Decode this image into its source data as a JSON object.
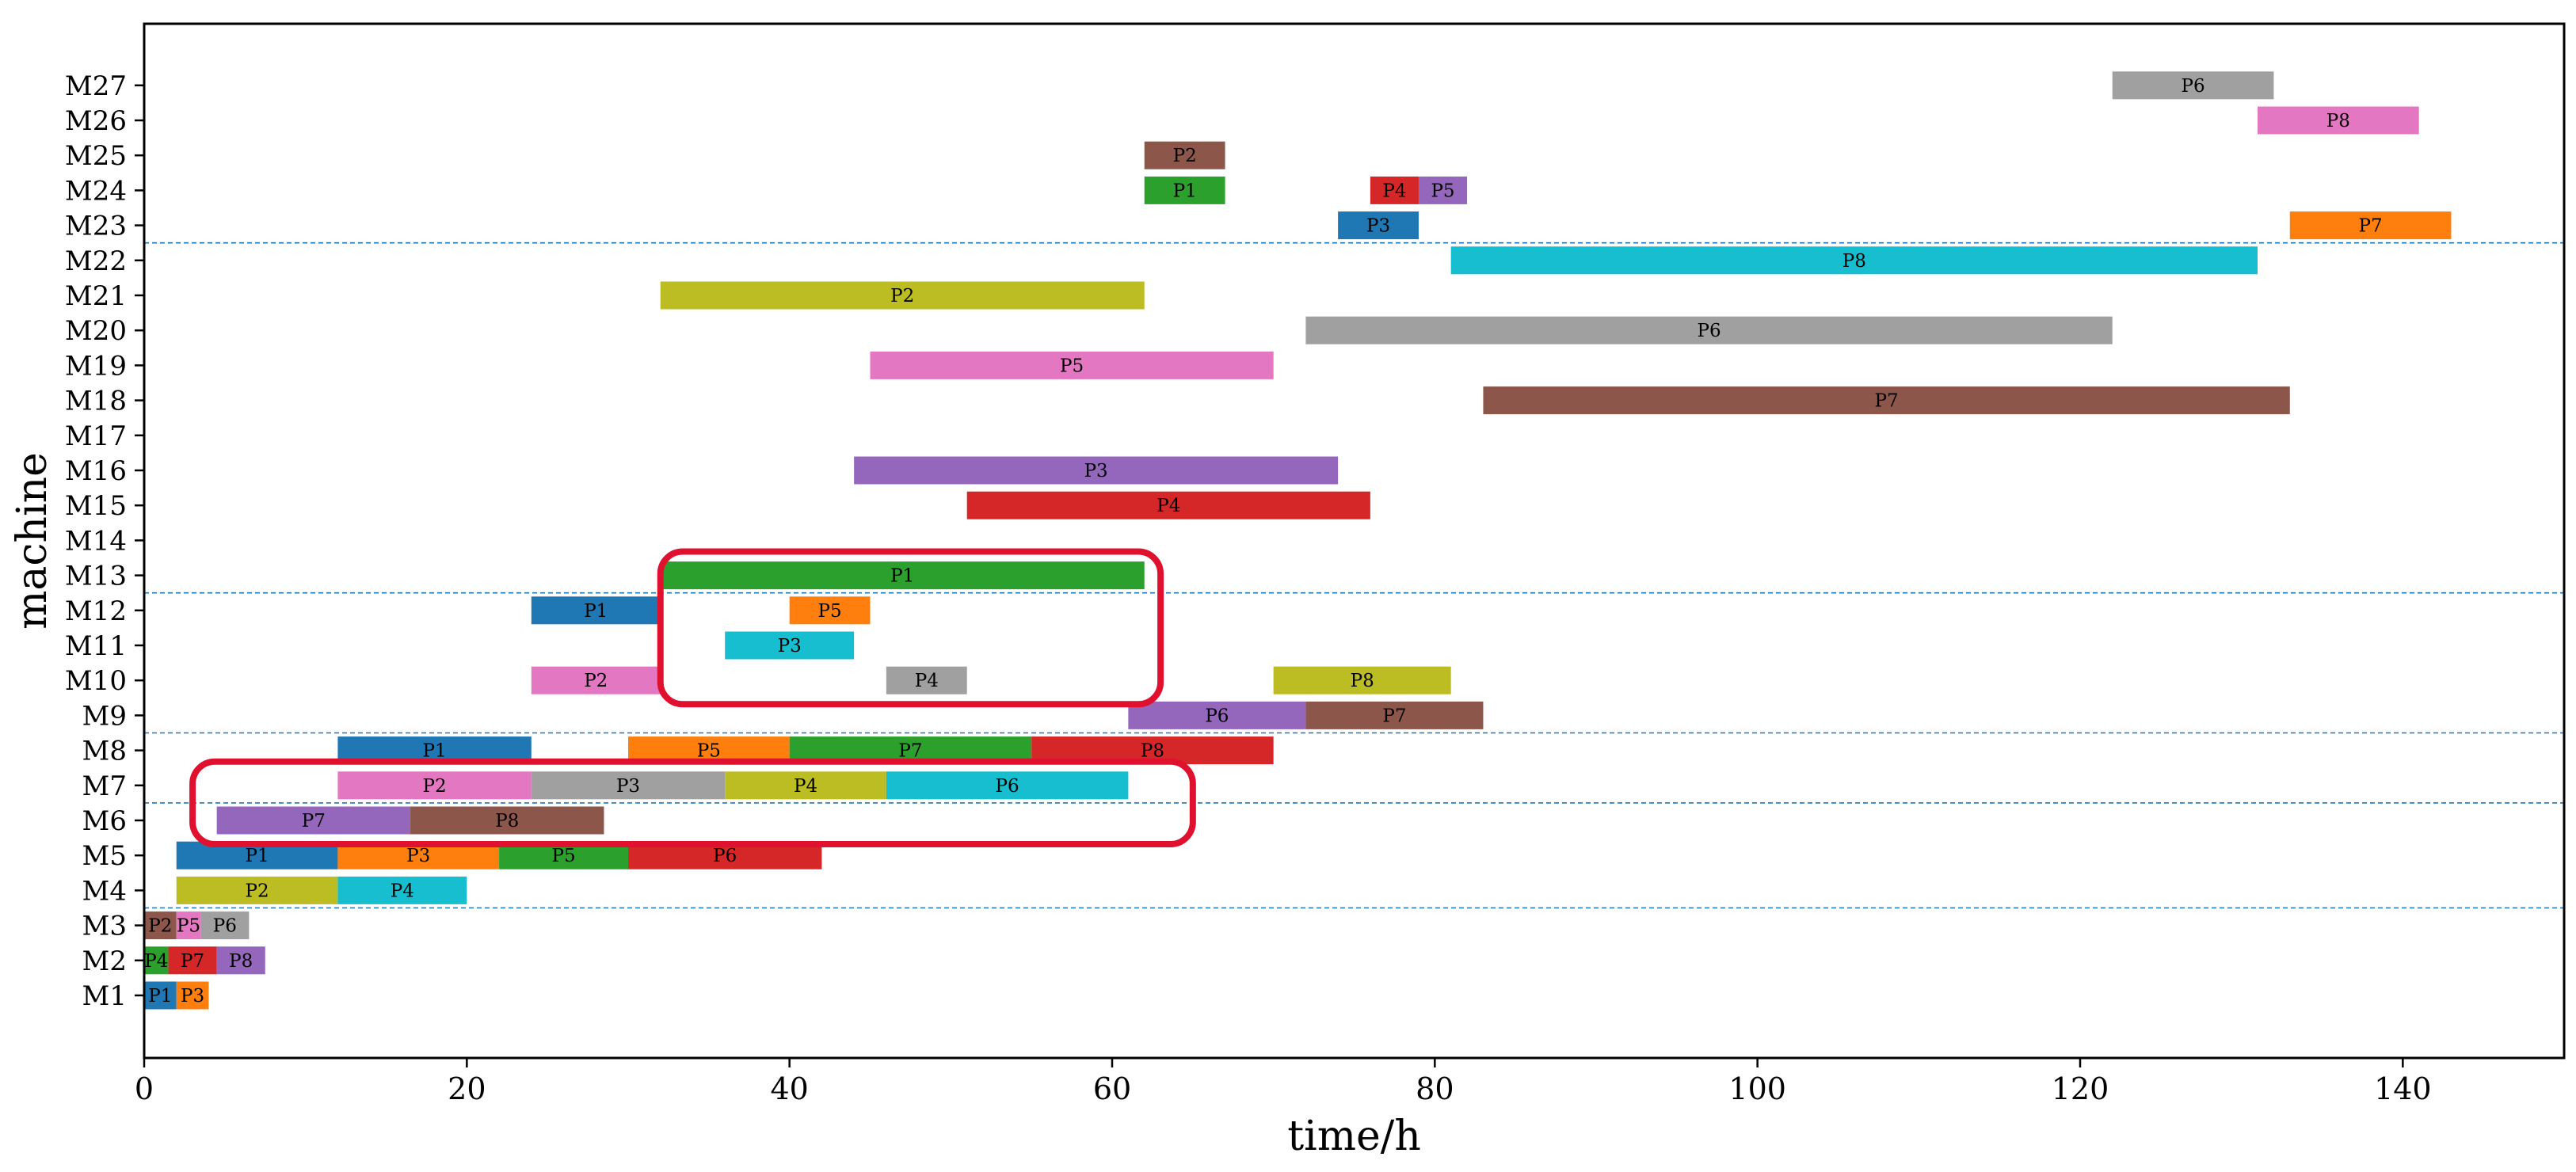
{
  "chart_data": {
    "type": "gantt",
    "title": "",
    "xlabel": "time/h",
    "ylabel": "machine",
    "xlim": [
      0,
      150
    ],
    "x_ticks": [
      0,
      20,
      40,
      60,
      80,
      100,
      120,
      140
    ],
    "grid": false,
    "machines": [
      "M1",
      "M2",
      "M3",
      "M4",
      "M5",
      "M6",
      "M7",
      "M8",
      "M9",
      "M10",
      "M11",
      "M12",
      "M13",
      "M14",
      "M15",
      "M16",
      "M17",
      "M18",
      "M19",
      "M20",
      "M21",
      "M22",
      "M23",
      "M24",
      "M25",
      "M26",
      "M27"
    ],
    "stage_boundaries": [
      3.5,
      6.5,
      8.5,
      12.5,
      22.5
    ],
    "colors": {
      "P1": "#1f77b4",
      "P2": "#8c564b",
      "P3": "#ff7f0e",
      "P4": "#2ca02c",
      "P5": "#e377c2",
      "P6": "#7f7f7f",
      "P7": "#d62728",
      "P8": "#9467bd",
      "blue": "#1f77b4",
      "orange": "#ff7f0e",
      "green": "#2ca02c",
      "red": "#d62728",
      "purple": "#9467bd",
      "brown": "#8c564b",
      "pink": "#e377c2",
      "gray": "#a0a0a0",
      "olive": "#bcbd22",
      "cyan": "#17becf",
      "highlight": "#e0102f",
      "boundary": "#1f77b4"
    },
    "tasks": [
      {
        "machine": "M1",
        "job": "P1",
        "start": 0,
        "end": 2,
        "color": "blue"
      },
      {
        "machine": "M1",
        "job": "P3",
        "start": 2,
        "end": 4,
        "color": "orange"
      },
      {
        "machine": "M2",
        "job": "P4",
        "start": 0,
        "end": 1.5,
        "color": "green"
      },
      {
        "machine": "M2",
        "job": "P7",
        "start": 1.5,
        "end": 4.5,
        "color": "red"
      },
      {
        "machine": "M2",
        "job": "P8",
        "start": 4.5,
        "end": 7.5,
        "color": "purple"
      },
      {
        "machine": "M3",
        "job": "P2",
        "start": 0,
        "end": 2,
        "color": "brown"
      },
      {
        "machine": "M3",
        "job": "P5",
        "start": 2,
        "end": 3.5,
        "color": "pink"
      },
      {
        "machine": "M3",
        "job": "P6",
        "start": 3.5,
        "end": 6.5,
        "color": "gray"
      },
      {
        "machine": "M4",
        "job": "P2",
        "start": 2,
        "end": 12,
        "color": "olive"
      },
      {
        "machine": "M4",
        "job": "P4",
        "start": 12,
        "end": 20,
        "color": "cyan"
      },
      {
        "machine": "M5",
        "job": "P1",
        "start": 2,
        "end": 12,
        "color": "blue"
      },
      {
        "machine": "M5",
        "job": "P3",
        "start": 12,
        "end": 22,
        "color": "orange"
      },
      {
        "machine": "M5",
        "job": "P5",
        "start": 22,
        "end": 30,
        "color": "green"
      },
      {
        "machine": "M5",
        "job": "P6",
        "start": 30,
        "end": 42,
        "color": "red"
      },
      {
        "machine": "M6",
        "job": "P7",
        "start": 4.5,
        "end": 16.5,
        "color": "purple"
      },
      {
        "machine": "M6",
        "job": "P8",
        "start": 16.5,
        "end": 28.5,
        "color": "brown"
      },
      {
        "machine": "M7",
        "job": "P2",
        "start": 12,
        "end": 24,
        "color": "pink"
      },
      {
        "machine": "M7",
        "job": "P3",
        "start": 24,
        "end": 36,
        "color": "gray"
      },
      {
        "machine": "M7",
        "job": "P4",
        "start": 36,
        "end": 46,
        "color": "olive"
      },
      {
        "machine": "M7",
        "job": "P6",
        "start": 46,
        "end": 61,
        "color": "cyan"
      },
      {
        "machine": "M8",
        "job": "P1",
        "start": 12,
        "end": 24,
        "color": "blue"
      },
      {
        "machine": "M8",
        "job": "P5",
        "start": 30,
        "end": 40,
        "color": "orange"
      },
      {
        "machine": "M8",
        "job": "P7",
        "start": 40,
        "end": 55,
        "color": "green"
      },
      {
        "machine": "M8",
        "job": "P8",
        "start": 55,
        "end": 70,
        "color": "red"
      },
      {
        "machine": "M9",
        "job": "P6",
        "start": 61,
        "end": 72,
        "color": "purple"
      },
      {
        "machine": "M9",
        "job": "P7",
        "start": 72,
        "end": 83,
        "color": "brown"
      },
      {
        "machine": "M10",
        "job": "P2",
        "start": 24,
        "end": 32,
        "color": "pink"
      },
      {
        "machine": "M10",
        "job": "P4",
        "start": 46,
        "end": 51,
        "color": "gray"
      },
      {
        "machine": "M10",
        "job": "P8",
        "start": 70,
        "end": 81,
        "color": "olive"
      },
      {
        "machine": "M11",
        "job": "P3",
        "start": 36,
        "end": 44,
        "color": "cyan"
      },
      {
        "machine": "M12",
        "job": "P1",
        "start": 24,
        "end": 32,
        "color": "blue"
      },
      {
        "machine": "M12",
        "job": "P5",
        "start": 40,
        "end": 45,
        "color": "orange"
      },
      {
        "machine": "M13",
        "job": "P1",
        "start": 32,
        "end": 62,
        "color": "green"
      },
      {
        "machine": "M15",
        "job": "P4",
        "start": 51,
        "end": 76,
        "color": "red"
      },
      {
        "machine": "M16",
        "job": "P3",
        "start": 44,
        "end": 74,
        "color": "purple"
      },
      {
        "machine": "M18",
        "job": "P7",
        "start": 83,
        "end": 133,
        "color": "brown"
      },
      {
        "machine": "M19",
        "job": "P5",
        "start": 45,
        "end": 70,
        "color": "pink"
      },
      {
        "machine": "M20",
        "job": "P6",
        "start": 72,
        "end": 122,
        "color": "gray"
      },
      {
        "machine": "M21",
        "job": "P2",
        "start": 32,
        "end": 62,
        "color": "olive"
      },
      {
        "machine": "M22",
        "job": "P8",
        "start": 81,
        "end": 131,
        "color": "cyan"
      },
      {
        "machine": "M23",
        "job": "P3",
        "start": 74,
        "end": 79,
        "color": "blue"
      },
      {
        "machine": "M23",
        "job": "P7",
        "start": 133,
        "end": 143,
        "color": "orange"
      },
      {
        "machine": "M24",
        "job": "P1",
        "start": 62,
        "end": 67,
        "color": "green"
      },
      {
        "machine": "M24",
        "job": "P4",
        "start": 76,
        "end": 79,
        "color": "red"
      },
      {
        "machine": "M24",
        "job": "P5",
        "start": 79,
        "end": 82,
        "color": "purple"
      },
      {
        "machine": "M25",
        "job": "P2",
        "start": 62,
        "end": 67,
        "color": "brown"
      },
      {
        "machine": "M26",
        "job": "P8",
        "start": 131,
        "end": 141,
        "color": "pink"
      },
      {
        "machine": "M27",
        "job": "P6",
        "start": 122,
        "end": 132,
        "color": "gray"
      }
    ],
    "highlight_regions": [
      {
        "x0": 32,
        "x1": 63,
        "machine_from": "M10",
        "machine_to": "M13"
      },
      {
        "x0": 3,
        "x1": 65,
        "machine_from": "M6",
        "machine_to": "M7"
      }
    ]
  }
}
